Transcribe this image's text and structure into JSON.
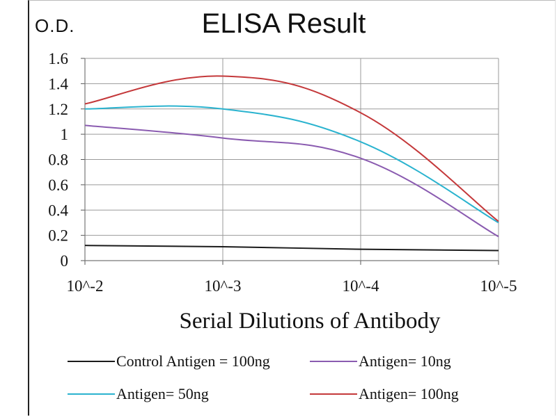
{
  "chart_data": {
    "type": "line",
    "title": "ELISA Result",
    "ylabel": "O.D.",
    "xlabel": "Serial Dilutions of Antibody",
    "categories": [
      "10^-2",
      "10^-3",
      "10^-4",
      "10^-5"
    ],
    "ylim": [
      0,
      1.6
    ],
    "yticks": [
      "0",
      "0.2",
      "0.4",
      "0.6",
      "0.8",
      "1",
      "1.2",
      "1.4",
      "1.6"
    ],
    "grid": true,
    "legend_position": "bottom",
    "series": [
      {
        "name": "Control Antigen = 100ng",
        "color": "#1a1a1a",
        "values": [
          0.12,
          0.11,
          0.09,
          0.08
        ]
      },
      {
        "name": "Antigen= 10ng",
        "color": "#8a5bb0",
        "values": [
          1.07,
          0.97,
          0.81,
          0.19
        ]
      },
      {
        "name": "Antigen= 50ng",
        "color": "#2ab3cf",
        "values": [
          1.2,
          1.2,
          0.94,
          0.3
        ]
      },
      {
        "name": "Antigen= 100ng",
        "color": "#c4383a",
        "values": [
          1.24,
          1.46,
          1.17,
          0.31
        ]
      }
    ]
  }
}
